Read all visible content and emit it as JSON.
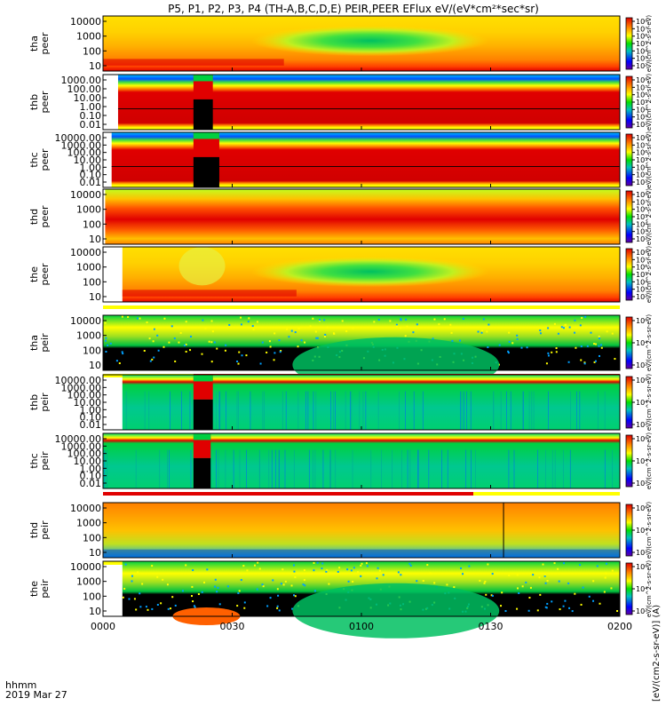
{
  "chart_data": {
    "type": "heatmap",
    "title": "P5, P1, P2, P3, P4 (TH-A,B,C,D,E) PEIR,PEER EFlux eV/(eV*cm²*sec*sr)",
    "x": {
      "ticks": [
        "0000",
        "0030",
        "0100",
        "0130",
        "0200"
      ],
      "tick_minutes": [
        0,
        30,
        60,
        90,
        120
      ],
      "range_minutes": [
        0,
        120
      ],
      "label_line1": "hhmm",
      "label_line2": "2019 Mar 27"
    },
    "colorbar_label": "eV/(cm^2-s-sr-eV)",
    "colorbar_full_label": "[eV/(cm2-s-sr-eV)] (A)",
    "colorbar_tick_sets": {
      "peer": [
        "10⁸",
        "10⁷",
        "10⁶",
        "10⁵",
        "10⁴",
        "10³",
        "10²"
      ],
      "peir": [
        "10⁶",
        "10⁴",
        "10²"
      ]
    },
    "panels": [
      {
        "probe": "tha",
        "species": "peer",
        "ylabel": "tha\npeer",
        "yticks": [
          "10000",
          "1000",
          "100",
          "10"
        ],
        "spectrum": "electron_wide",
        "data_start_min": 0.0,
        "gap": null,
        "bar_after": null,
        "bar_after_color": null
      },
      {
        "probe": "thb",
        "species": "peer",
        "ylabel": "thb\npeer",
        "yticks": [
          "1000.00",
          "100.00",
          "10.00",
          "1.00",
          "0.10",
          "0.01"
        ],
        "spectrum": "band_electron",
        "data_start_min": 3.5,
        "gap": {
          "start_min": 21.0,
          "end_min": 25.5
        },
        "bar_after": null,
        "bar_after_color": null
      },
      {
        "probe": "thc",
        "species": "peer",
        "ylabel": "thc\npeer",
        "yticks": [
          "10000.00",
          "1000.00",
          "100.00",
          "10.00",
          "1.00",
          "0.10",
          "0.01"
        ],
        "spectrum": "band_electron",
        "data_start_min": 2.0,
        "gap": {
          "start_min": 21.0,
          "end_min": 27.0
        },
        "bar_after": null,
        "bar_after_color": null
      },
      {
        "probe": "thd",
        "species": "peer",
        "ylabel": "thd\npeer",
        "yticks": [
          "10000",
          "1000",
          "100",
          "10"
        ],
        "spectrum": "electron_hot",
        "data_start_min": 0.5,
        "gap": null,
        "bar_after": null,
        "bar_after_color": null
      },
      {
        "probe": "the",
        "species": "peer",
        "ylabel": "the\npeer",
        "yticks": [
          "10000",
          "1000",
          "100",
          "10"
        ],
        "spectrum": "electron_wide",
        "data_start_min": 4.5,
        "gap": null,
        "bar_after": "#ffff00",
        "bar_after_color": null
      },
      {
        "probe": "tha",
        "species": "peir",
        "ylabel": "tha\npeir",
        "yticks": [
          "10000",
          "1000",
          "100",
          "10"
        ],
        "spectrum": "ion_noisy",
        "data_start_min": 0.0,
        "gap": null,
        "bar_after": "split",
        "bar_after_color": null
      },
      {
        "probe": "thb",
        "species": "peir",
        "ylabel": "thb\npeir",
        "yticks": [
          "10000.00",
          "1000.00",
          "100.00",
          "10.00",
          "1.00",
          "0.10",
          "0.01"
        ],
        "spectrum": "band_ion",
        "data_start_min": 4.5,
        "gap": {
          "start_min": 21.0,
          "end_min": 25.5
        },
        "bar_after": null,
        "bar_after_color": null
      },
      {
        "probe": "thc",
        "species": "peir",
        "ylabel": "thc\npeir",
        "yticks": [
          "10000.00",
          "1000.00",
          "100.00",
          "10.00",
          "1.00",
          "0.10",
          "0.01"
        ],
        "spectrum": "band_ion",
        "data_start_min": 0.0,
        "gap": {
          "start_min": 21.0,
          "end_min": 25.0
        },
        "bar_after": "split2",
        "bar_after_color": null
      },
      {
        "probe": "thd",
        "species": "peir",
        "ylabel": "thd\npeir",
        "yticks": [
          "10000",
          "1000",
          "100",
          "10"
        ],
        "spectrum": "ion_hot",
        "data_start_min": 0.0,
        "gap": null,
        "bar_after": "#ffff00",
        "bar_after_color": null
      },
      {
        "probe": "the",
        "species": "peir",
        "ylabel": "the\npeir",
        "yticks": [
          "10000",
          "1000",
          "100",
          "10"
        ],
        "spectrum": "ion_noisy",
        "data_start_min": 4.5,
        "gap": null,
        "bar_after": null,
        "bar_after_color": null
      }
    ],
    "colors": {
      "red": "#e00000",
      "dark_red": "#b00000",
      "orange": "#ff8000",
      "yellow": "#ffff00",
      "green": "#00d040",
      "cyan": "#00c0c0",
      "blue": "#0040ff",
      "black": "#000000",
      "white": "#ffffff"
    }
  }
}
